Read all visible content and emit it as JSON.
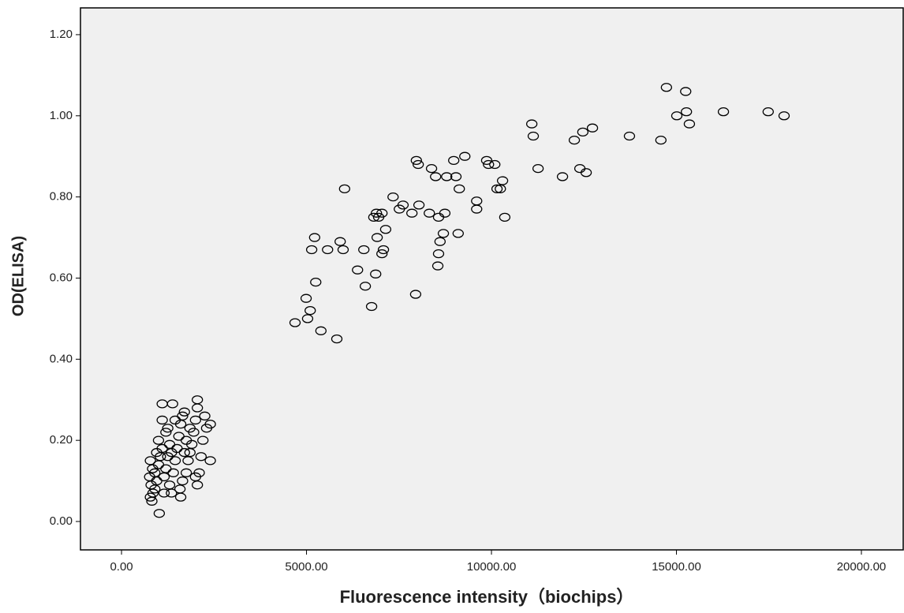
{
  "chart_data": {
    "type": "scatter",
    "x_label": "Fluorescence intensity（biochips）",
    "y_label": "OD(ELISA)",
    "marker_color": "#000000",
    "background": "#f0f0f0",
    "xlim": [
      -1110,
      21130
    ],
    "ylim": [
      -0.07,
      1.266
    ],
    "xticks": [
      {
        "value": 0,
        "label": "0.00"
      },
      {
        "value": 5000,
        "label": "5000.00"
      },
      {
        "value": 10000,
        "label": "10000.00"
      },
      {
        "value": 15000,
        "label": "15000.00"
      },
      {
        "value": 20000,
        "label": "20000.00"
      }
    ],
    "yticks": [
      {
        "value": 0,
        "label": "0.00"
      },
      {
        "value": 0.2,
        "label": "0.20"
      },
      {
        "value": 0.4,
        "label": "0.40"
      },
      {
        "value": 0.6,
        "label": "0.60"
      },
      {
        "value": 0.8,
        "label": "0.80"
      },
      {
        "value": 1,
        "label": "1.00"
      },
      {
        "value": 1.2,
        "label": "1.20"
      }
    ],
    "x": [
      4690,
      4990,
      5030,
      5100,
      5140,
      5220,
      5250,
      5390,
      5570,
      5820,
      5910,
      5990,
      6030,
      6380,
      6550,
      6590,
      6760,
      6820,
      6890,
      6870,
      6910,
      6950,
      7040,
      7040,
      7080,
      7140,
      7340,
      7510,
      7610,
      7850,
      7950,
      7970,
      8020,
      8040,
      8320,
      8380,
      8490,
      8550,
      8570,
      8570,
      8610,
      8700,
      8740,
      8790,
      8980,
      9040,
      9100,
      9130,
      9280,
      9600,
      9600,
      9870,
      9920,
      10090,
      10150,
      10240,
      10300,
      10360,
      11090,
      11130,
      11260,
      11920,
      12240,
      12390,
      12470,
      12560,
      12730,
      13730,
      14580,
      14730,
      15010,
      15250,
      15270,
      15350,
      16270,
      17480,
      17910,
      1020,
      820,
      780,
      850,
      900,
      800,
      760,
      840,
      780,
      900,
      950,
      1000,
      1050,
      1100,
      1000,
      1100,
      1100,
      1380,
      1250,
      1300,
      1350,
      1200,
      1150,
      1300,
      1350,
      1400,
      1450,
      1500,
      1550,
      1600,
      1650,
      1700,
      1600,
      1580,
      1650,
      1750,
      1800,
      1850,
      1900,
      1950,
      2000,
      2050,
      2050,
      2050,
      2000,
      2100,
      2150,
      2200,
      2300,
      2400,
      2400,
      2250,
      1200,
      1450,
      1750,
      1850,
      1250,
      1700,
      1150,
      950
    ],
    "values": [
      0.49,
      0.55,
      0.5,
      0.52,
      0.67,
      0.7,
      0.59,
      0.47,
      0.67,
      0.45,
      0.69,
      0.67,
      0.82,
      0.62,
      0.67,
      0.58,
      0.53,
      0.75,
      0.76,
      0.61,
      0.7,
      0.75,
      0.76,
      0.66,
      0.67,
      0.72,
      0.8,
      0.77,
      0.78,
      0.76,
      0.56,
      0.89,
      0.88,
      0.78,
      0.76,
      0.87,
      0.85,
      0.63,
      0.75,
      0.66,
      0.69,
      0.71,
      0.76,
      0.85,
      0.89,
      0.85,
      0.71,
      0.82,
      0.9,
      0.79,
      0.77,
      0.89,
      0.88,
      0.88,
      0.82,
      0.82,
      0.84,
      0.75,
      0.98,
      0.95,
      0.87,
      0.85,
      0.94,
      0.87,
      0.96,
      0.86,
      0.97,
      0.95,
      0.94,
      1.07,
      1.0,
      1.06,
      1.01,
      0.98,
      1.01,
      1.01,
      1.0,
      0.02,
      0.05,
      0.06,
      0.07,
      0.08,
      0.09,
      0.11,
      0.13,
      0.15,
      0.12,
      0.1,
      0.14,
      0.16,
      0.18,
      0.2,
      0.25,
      0.29,
      0.29,
      0.23,
      0.19,
      0.17,
      0.13,
      0.11,
      0.09,
      0.07,
      0.12,
      0.15,
      0.18,
      0.21,
      0.24,
      0.26,
      0.27,
      0.06,
      0.08,
      0.1,
      0.12,
      0.15,
      0.17,
      0.19,
      0.22,
      0.25,
      0.28,
      0.3,
      0.09,
      0.11,
      0.12,
      0.16,
      0.2,
      0.23,
      0.24,
      0.15,
      0.26,
      0.22,
      0.25,
      0.2,
      0.23,
      0.16,
      0.17,
      0.07,
      0.17
    ]
  }
}
